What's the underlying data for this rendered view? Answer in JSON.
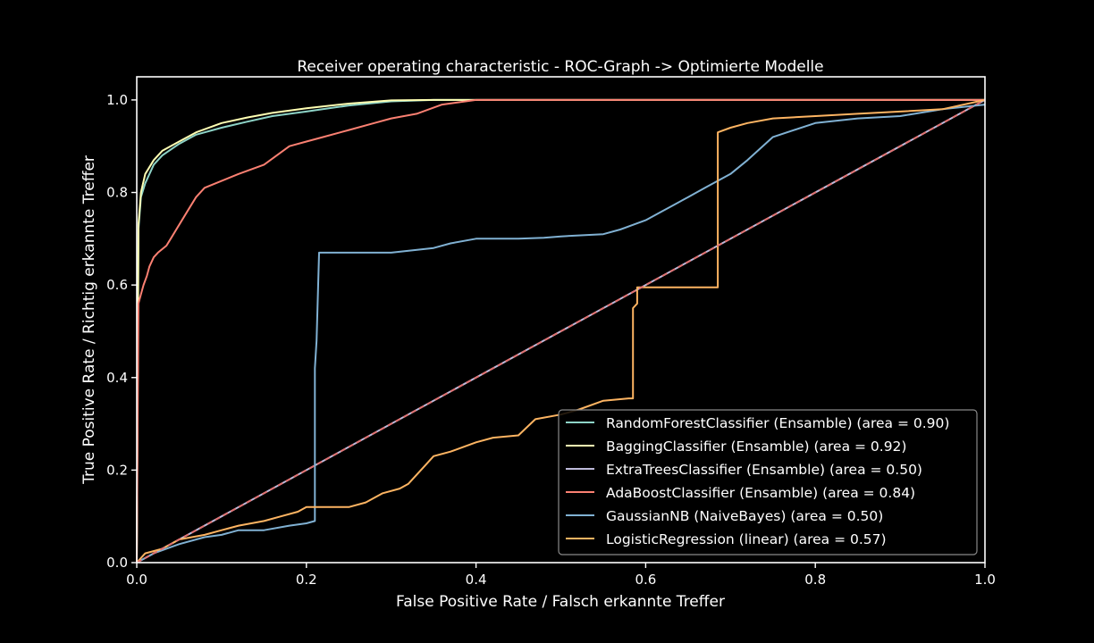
{
  "chart_data": {
    "type": "line",
    "title": "Receiver operating characteristic - ROC-Graph -> Optimierte Modelle",
    "xlabel": "False Positive Rate / Falsch erkannte Treffer",
    "ylabel": "True Positive Rate / Richtig erkannte Treffer",
    "xlim": [
      0.0,
      1.0
    ],
    "ylim": [
      0.0,
      1.05
    ],
    "xticks": [
      "0.0",
      "0.2",
      "0.4",
      "0.6",
      "0.8",
      "1.0"
    ],
    "yticks": [
      "0.0",
      "0.2",
      "0.4",
      "0.6",
      "0.8",
      "1.0"
    ],
    "grid": false,
    "legend_position": "bottom-right",
    "background": "#000000",
    "series": [
      {
        "name": "RandomForestClassifier (Ensamble) (area = 0.90)",
        "color": "#8dd3c7",
        "x": [
          0,
          0.002,
          0.005,
          0.01,
          0.02,
          0.03,
          0.05,
          0.07,
          0.1,
          0.13,
          0.16,
          0.2,
          0.25,
          0.3,
          0.35,
          0.4,
          0.5,
          0.7,
          1.0
        ],
        "y": [
          0,
          0.72,
          0.79,
          0.82,
          0.86,
          0.88,
          0.905,
          0.925,
          0.94,
          0.953,
          0.965,
          0.975,
          0.988,
          0.997,
          1.0,
          1.0,
          1.0,
          1.0,
          1.0
        ]
      },
      {
        "name": "BaggingClassifier (Ensamble) (area = 0.92)",
        "color": "#ffffb3",
        "x": [
          0,
          0.002,
          0.005,
          0.01,
          0.02,
          0.03,
          0.05,
          0.07,
          0.1,
          0.13,
          0.16,
          0.2,
          0.25,
          0.3,
          0.35,
          0.4,
          0.5,
          0.7,
          1.0
        ],
        "y": [
          0,
          0.73,
          0.8,
          0.84,
          0.87,
          0.89,
          0.91,
          0.93,
          0.95,
          0.962,
          0.972,
          0.982,
          0.992,
          0.999,
          1.0,
          1.0,
          1.0,
          1.0,
          1.0
        ]
      },
      {
        "name": "ExtraTreesClassifier (Ensamble) (area = 0.50)",
        "color": "#bebada",
        "x": [
          0,
          1.0
        ],
        "y": [
          0,
          1.0
        ]
      },
      {
        "name": "AdaBoostClassifier (Ensamble) (area = 0.84)",
        "color": "#fb8072",
        "x": [
          0,
          0.002,
          0.005,
          0.008,
          0.012,
          0.015,
          0.02,
          0.025,
          0.035,
          0.04,
          0.05,
          0.06,
          0.07,
          0.08,
          0.1,
          0.12,
          0.15,
          0.18,
          0.2,
          0.22,
          0.25,
          0.28,
          0.3,
          0.33,
          0.36,
          0.38,
          0.4,
          0.5,
          0.7,
          1.0
        ],
        "y": [
          0,
          0.56,
          0.58,
          0.6,
          0.62,
          0.64,
          0.66,
          0.67,
          0.685,
          0.7,
          0.73,
          0.76,
          0.79,
          0.81,
          0.825,
          0.84,
          0.86,
          0.9,
          0.91,
          0.92,
          0.935,
          0.95,
          0.96,
          0.97,
          0.99,
          0.995,
          1.0,
          1.0,
          1.0,
          1.0
        ]
      },
      {
        "name": "GaussianNB (NaiveBayes) (area = 0.50)",
        "color": "#80b1d3",
        "x": [
          0,
          0.02,
          0.05,
          0.08,
          0.1,
          0.12,
          0.15,
          0.18,
          0.2,
          0.21,
          0.21,
          0.212,
          0.215,
          0.22,
          0.3,
          0.35,
          0.37,
          0.4,
          0.45,
          0.48,
          0.5,
          0.55,
          0.57,
          0.6,
          0.62,
          0.63,
          0.65,
          0.67,
          0.7,
          0.72,
          0.75,
          0.8,
          0.85,
          0.9,
          0.95,
          1.0
        ],
        "y": [
          0,
          0.02,
          0.04,
          0.055,
          0.06,
          0.07,
          0.07,
          0.08,
          0.085,
          0.09,
          0.42,
          0.48,
          0.67,
          0.67,
          0.67,
          0.68,
          0.69,
          0.7,
          0.7,
          0.702,
          0.705,
          0.71,
          0.72,
          0.74,
          0.76,
          0.77,
          0.79,
          0.81,
          0.84,
          0.87,
          0.92,
          0.95,
          0.96,
          0.965,
          0.98,
          0.99
        ]
      },
      {
        "name": "LogisticRegression (linear) (area = 0.57)",
        "color": "#fdb462",
        "x": [
          0,
          0.01,
          0.03,
          0.05,
          0.08,
          0.1,
          0.12,
          0.15,
          0.17,
          0.19,
          0.2,
          0.25,
          0.27,
          0.29,
          0.31,
          0.32,
          0.34,
          0.35,
          0.37,
          0.4,
          0.42,
          0.45,
          0.47,
          0.5,
          0.52,
          0.55,
          0.58,
          0.585,
          0.585,
          0.59,
          0.59,
          0.685,
          0.685,
          0.7,
          0.72,
          0.75,
          0.8,
          0.85,
          0.9,
          0.95,
          1.0
        ],
        "y": [
          0,
          0.02,
          0.03,
          0.05,
          0.06,
          0.07,
          0.08,
          0.09,
          0.1,
          0.11,
          0.12,
          0.12,
          0.13,
          0.15,
          0.16,
          0.17,
          0.21,
          0.23,
          0.24,
          0.26,
          0.27,
          0.275,
          0.31,
          0.32,
          0.33,
          0.35,
          0.355,
          0.355,
          0.55,
          0.56,
          0.595,
          0.595,
          0.93,
          0.94,
          0.95,
          0.96,
          0.965,
          0.97,
          0.975,
          0.98,
          1.0
        ]
      },
      {
        "name": "",
        "color": "#e07070",
        "dashed": true,
        "x": [
          0,
          1
        ],
        "y": [
          0,
          1
        ]
      }
    ]
  }
}
